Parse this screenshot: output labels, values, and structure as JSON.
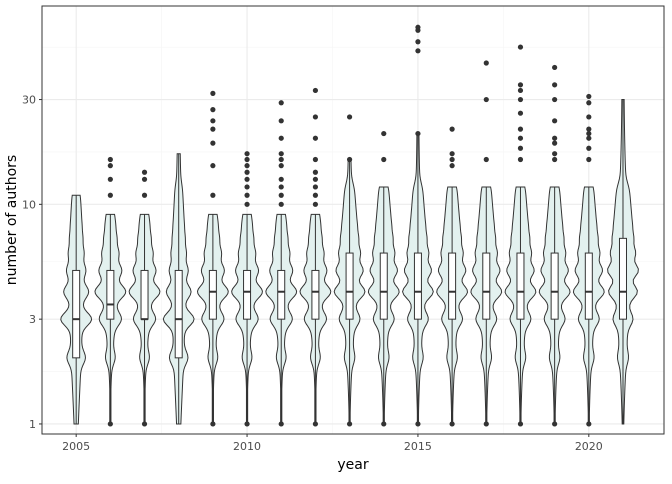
{
  "chart_data": {
    "type": "violin",
    "xlabel": "year",
    "ylabel": "number of authors",
    "y_scale": "log10",
    "ylim": [
      0.9,
      80
    ],
    "xlim": [
      2004.0,
      2022.2
    ],
    "x_ticks": [
      2005,
      2010,
      2015,
      2020
    ],
    "x_tick_labels": [
      "2005",
      "2010",
      "2015",
      "2020"
    ],
    "y_ticks": [
      1,
      3,
      10,
      30
    ],
    "y_tick_labels": [
      "1",
      "3",
      "10",
      "30"
    ],
    "grid": true,
    "legend": "none",
    "colors": {
      "violin_fill": "#e3f1ef",
      "line": "#333333",
      "box_fill": "#ffffff",
      "panel_border": "#333333",
      "grid_major": "#ebebeb",
      "grid_minor": "#f5f5f5"
    },
    "years": [
      2005,
      2006,
      2007,
      2008,
      2009,
      2010,
      2011,
      2012,
      2013,
      2014,
      2015,
      2016,
      2017,
      2018,
      2019,
      2020,
      2021
    ],
    "violins": [
      {
        "year": 2005,
        "min": 1,
        "q1": 2,
        "median": 3,
        "q3": 5,
        "max": 11,
        "outliers": []
      },
      {
        "year": 2006,
        "min": 1,
        "q1": 3,
        "median": 3.5,
        "q3": 5,
        "max": 9,
        "outliers": [
          1,
          11,
          13,
          15,
          16
        ]
      },
      {
        "year": 2007,
        "min": 1,
        "q1": 3,
        "median": 3,
        "q3": 5,
        "max": 9,
        "outliers": [
          1,
          11,
          13,
          14
        ]
      },
      {
        "year": 2008,
        "min": 1,
        "q1": 2,
        "median": 3,
        "q3": 5,
        "max": 17,
        "outliers": []
      },
      {
        "year": 2009,
        "min": 1,
        "q1": 3,
        "median": 4,
        "q3": 5,
        "max": 9,
        "outliers": [
          1,
          11,
          15,
          19,
          22,
          24,
          27,
          32
        ]
      },
      {
        "year": 2010,
        "min": 1,
        "q1": 3,
        "median": 4,
        "q3": 5,
        "max": 9,
        "outliers": [
          1,
          10,
          11,
          12,
          13,
          14,
          15,
          16,
          17
        ]
      },
      {
        "year": 2011,
        "min": 1,
        "q1": 3,
        "median": 4,
        "q3": 5,
        "max": 9,
        "outliers": [
          1,
          10,
          11,
          12,
          13,
          15,
          16,
          17,
          20,
          24,
          29
        ]
      },
      {
        "year": 2012,
        "min": 1,
        "q1": 3,
        "median": 4,
        "q3": 5,
        "max": 9,
        "outliers": [
          1,
          10,
          11,
          12,
          13,
          14,
          16,
          20,
          25,
          33
        ]
      },
      {
        "year": 2013,
        "min": 1,
        "q1": 3,
        "median": 4,
        "q3": 6,
        "max": 16,
        "outliers": [
          1,
          16,
          25
        ]
      },
      {
        "year": 2014,
        "min": 1,
        "q1": 3,
        "median": 4,
        "q3": 6,
        "max": 12,
        "outliers": [
          1,
          16,
          21
        ]
      },
      {
        "year": 2015,
        "min": 1,
        "q1": 3,
        "median": 4,
        "q3": 6,
        "max": 21,
        "outliers": [
          1,
          21,
          50,
          55,
          62,
          64
        ]
      },
      {
        "year": 2016,
        "min": 1,
        "q1": 3,
        "median": 4,
        "q3": 6,
        "max": 12,
        "outliers": [
          1,
          15,
          16,
          17,
          22
        ]
      },
      {
        "year": 2017,
        "min": 1,
        "q1": 3,
        "median": 4,
        "q3": 6,
        "max": 12,
        "outliers": [
          1,
          16,
          30,
          44
        ]
      },
      {
        "year": 2018,
        "min": 1,
        "q1": 3,
        "median": 4,
        "q3": 6,
        "max": 12,
        "outliers": [
          1,
          16,
          18,
          20,
          22,
          26,
          30,
          33,
          35,
          52
        ]
      },
      {
        "year": 2019,
        "min": 1,
        "q1": 3,
        "median": 4,
        "q3": 6,
        "max": 12,
        "outliers": [
          1,
          16,
          17,
          19,
          20,
          24,
          30,
          35,
          42
        ]
      },
      {
        "year": 2020,
        "min": 1,
        "q1": 3,
        "median": 4,
        "q3": 6,
        "max": 12,
        "outliers": [
          1,
          16,
          18,
          20,
          21,
          22,
          25,
          29,
          31
        ]
      },
      {
        "year": 2021,
        "min": 1,
        "q1": 3,
        "median": 4,
        "q3": 7,
        "max": 30,
        "outliers": []
      }
    ]
  }
}
